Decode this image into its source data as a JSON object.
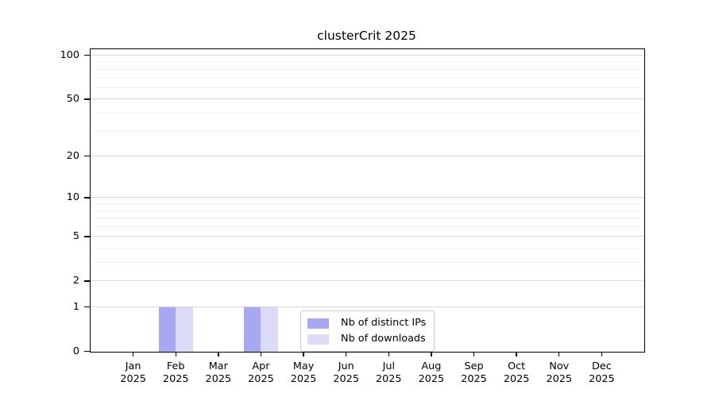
{
  "chart_data": {
    "type": "bar",
    "title": "clusterCrit 2025",
    "x_tick_year": "2025",
    "categories": [
      "Jan",
      "Feb",
      "Mar",
      "Apr",
      "May",
      "Jun",
      "Jul",
      "Aug",
      "Sep",
      "Oct",
      "Nov",
      "Dec"
    ],
    "series": [
      {
        "name": "Nb of distinct IPs",
        "slug": "distinct-ips",
        "color": "#a8a8f2",
        "values": [
          0,
          1,
          0,
          1,
          0,
          0,
          0,
          0,
          0,
          0,
          0,
          0
        ]
      },
      {
        "name": "Nb of downloads",
        "slug": "downloads",
        "color": "#dbdbf8",
        "values": [
          0,
          1,
          0,
          1,
          0,
          0,
          0,
          0,
          0,
          0,
          0,
          0
        ]
      }
    ],
    "y_axis": {
      "scale": "log1p",
      "major_ticks": [
        0,
        1,
        2,
        5,
        10,
        20,
        50,
        100
      ],
      "minor_ticks": [
        3,
        4,
        6,
        7,
        8,
        9,
        30,
        40,
        60,
        70,
        80,
        90
      ],
      "range_max": 110
    },
    "x_axis": {
      "grid": false
    },
    "legend": {
      "position": "lower center",
      "entries": [
        "Nb of distinct IPs",
        "Nb of downloads"
      ]
    },
    "colors": {
      "major_grid": "#d9d9d9",
      "minor_grid": "#f1f1f1",
      "axis": "#000000",
      "background": "#ffffff"
    }
  }
}
